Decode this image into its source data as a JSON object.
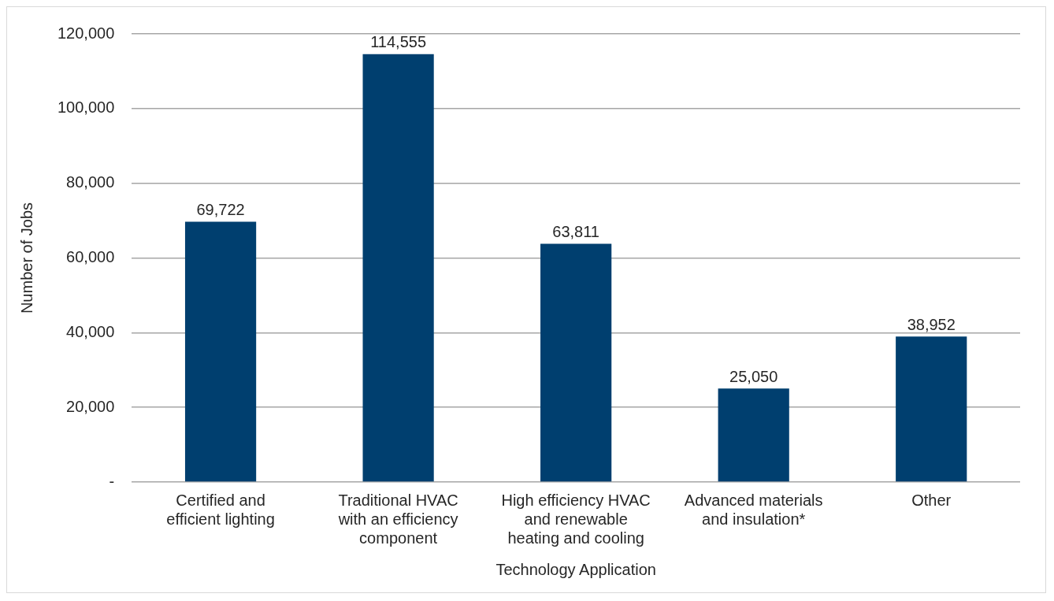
{
  "chart_data": {
    "type": "bar",
    "xlabel": "Technology Application",
    "ylabel": "Number of Jobs",
    "categories": [
      "Certified and efficient lighting",
      "Traditional HVAC with an efficiency component",
      "High efficiency HVAC and renewable heating and cooling",
      "Advanced materials and insulation*",
      "Other"
    ],
    "values": [
      69722,
      114555,
      63811,
      25050,
      38952
    ],
    "color": "#003f6f",
    "ylim": [
      0,
      120000
    ],
    "yticks": [
      {
        "value": 0,
        "label": "-"
      },
      {
        "value": 20000,
        "label": "20,000"
      },
      {
        "value": 40000,
        "label": "40,000"
      },
      {
        "value": 60000,
        "label": "60,000"
      },
      {
        "value": 80000,
        "label": "80,000"
      },
      {
        "value": 100000,
        "label": "100,000"
      },
      {
        "value": 120000,
        "label": "120,000"
      }
    ],
    "value_labels": [
      "69,722",
      "114,555",
      "63,811",
      "25,050",
      "38,952"
    ],
    "grid": "y",
    "legend": false
  }
}
